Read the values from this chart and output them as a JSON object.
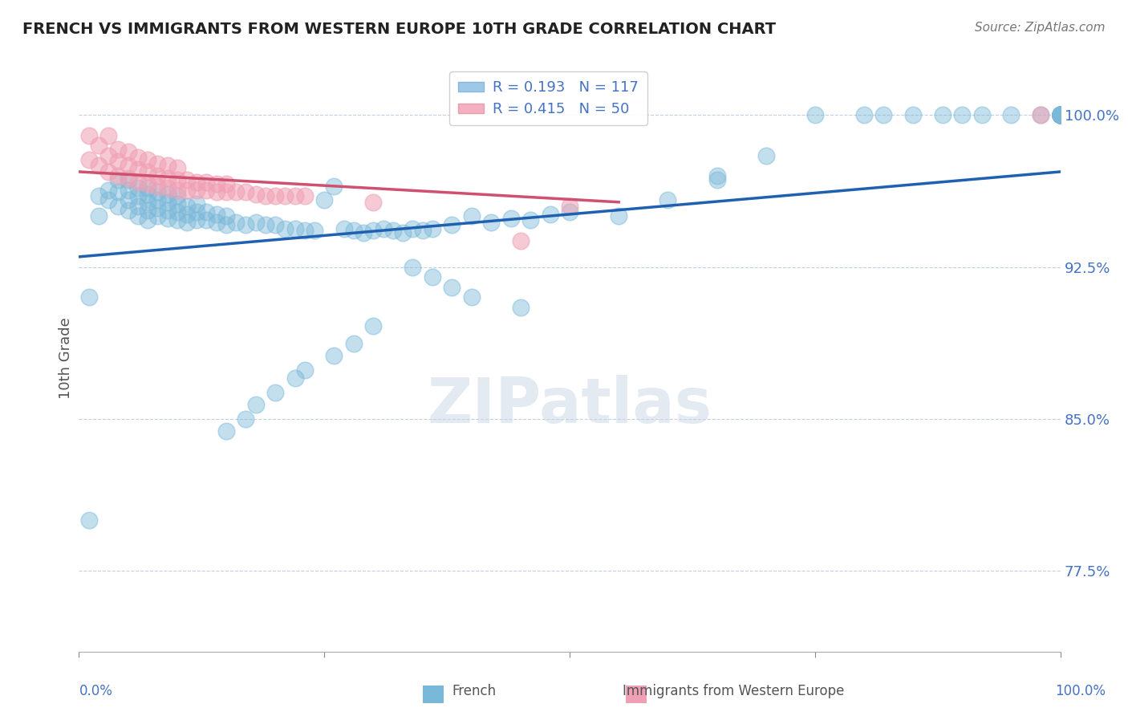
{
  "title": "FRENCH VS IMMIGRANTS FROM WESTERN EUROPE 10TH GRADE CORRELATION CHART",
  "source": "Source: ZipAtlas.com",
  "ylabel": "10th Grade",
  "y_tick_labels": [
    "77.5%",
    "85.0%",
    "92.5%",
    "100.0%"
  ],
  "y_tick_values": [
    0.775,
    0.85,
    0.925,
    1.0
  ],
  "xlim": [
    0.0,
    1.0
  ],
  "ylim": [
    0.735,
    1.025
  ],
  "legend_r1": "R = 0.193",
  "legend_n1": "N = 117",
  "legend_r2": "R = 0.415",
  "legend_n2": "N = 50",
  "blue_color": "#7ab8d9",
  "pink_color": "#f0a0b4",
  "blue_line_color": "#2060b0",
  "pink_line_color": "#d05070",
  "title_color": "#222222",
  "axis_label_color": "#4472c4",
  "blue_line_x0": 0.0,
  "blue_line_y0": 0.93,
  "blue_line_x1": 1.0,
  "blue_line_y1": 0.972,
  "pink_line_x0": 0.0,
  "pink_line_y0": 0.972,
  "pink_line_x1": 0.55,
  "pink_line_y1": 0.957,
  "blue_scatter_x": [
    0.01,
    0.02,
    0.02,
    0.03,
    0.03,
    0.04,
    0.04,
    0.04,
    0.05,
    0.05,
    0.05,
    0.05,
    0.06,
    0.06,
    0.06,
    0.06,
    0.07,
    0.07,
    0.07,
    0.07,
    0.07,
    0.08,
    0.08,
    0.08,
    0.08,
    0.09,
    0.09,
    0.09,
    0.09,
    0.1,
    0.1,
    0.1,
    0.1,
    0.11,
    0.11,
    0.11,
    0.12,
    0.12,
    0.12,
    0.13,
    0.13,
    0.14,
    0.14,
    0.15,
    0.15,
    0.16,
    0.17,
    0.18,
    0.19,
    0.2,
    0.21,
    0.22,
    0.23,
    0.24,
    0.25,
    0.26,
    0.27,
    0.28,
    0.29,
    0.3,
    0.31,
    0.32,
    0.33,
    0.34,
    0.35,
    0.36,
    0.38,
    0.4,
    0.42,
    0.44,
    0.46,
    0.48,
    0.5,
    0.55,
    0.6,
    0.65,
    0.7,
    0.75,
    0.8,
    0.82,
    0.85,
    0.88,
    0.9,
    0.92,
    0.95,
    0.98,
    1.0,
    1.0,
    1.0,
    1.0,
    1.0,
    1.0,
    1.0,
    1.0,
    1.0,
    1.0,
    1.0,
    1.0,
    1.0,
    1.0,
    1.0,
    1.0,
    1.0,
    0.01,
    0.65,
    0.3,
    0.28,
    0.26,
    0.23,
    0.22,
    0.2,
    0.18,
    0.17,
    0.15,
    0.34,
    0.36,
    0.38,
    0.4,
    0.45
  ],
  "blue_scatter_y": [
    0.91,
    0.96,
    0.95,
    0.958,
    0.963,
    0.955,
    0.962,
    0.968,
    0.953,
    0.958,
    0.963,
    0.968,
    0.95,
    0.955,
    0.96,
    0.964,
    0.948,
    0.953,
    0.957,
    0.961,
    0.964,
    0.95,
    0.954,
    0.958,
    0.962,
    0.949,
    0.953,
    0.957,
    0.961,
    0.948,
    0.952,
    0.956,
    0.96,
    0.947,
    0.951,
    0.955,
    0.948,
    0.952,
    0.956,
    0.948,
    0.952,
    0.947,
    0.951,
    0.946,
    0.95,
    0.947,
    0.946,
    0.947,
    0.946,
    0.946,
    0.944,
    0.944,
    0.943,
    0.943,
    0.958,
    0.965,
    0.944,
    0.943,
    0.942,
    0.943,
    0.944,
    0.943,
    0.942,
    0.944,
    0.943,
    0.944,
    0.946,
    0.95,
    0.947,
    0.949,
    0.948,
    0.951,
    0.952,
    0.95,
    0.958,
    0.97,
    0.98,
    1.0,
    1.0,
    1.0,
    1.0,
    1.0,
    1.0,
    1.0,
    1.0,
    1.0,
    1.0,
    1.0,
    1.0,
    1.0,
    1.0,
    1.0,
    1.0,
    1.0,
    1.0,
    1.0,
    1.0,
    1.0,
    1.0,
    1.0,
    1.0,
    1.0,
    1.0,
    0.8,
    0.968,
    0.896,
    0.887,
    0.881,
    0.874,
    0.87,
    0.863,
    0.857,
    0.85,
    0.844,
    0.925,
    0.92,
    0.915,
    0.91,
    0.905
  ],
  "pink_scatter_x": [
    0.01,
    0.01,
    0.02,
    0.02,
    0.03,
    0.03,
    0.03,
    0.04,
    0.04,
    0.04,
    0.05,
    0.05,
    0.05,
    0.06,
    0.06,
    0.06,
    0.07,
    0.07,
    0.07,
    0.08,
    0.08,
    0.08,
    0.09,
    0.09,
    0.09,
    0.1,
    0.1,
    0.1,
    0.11,
    0.11,
    0.12,
    0.12,
    0.13,
    0.13,
    0.14,
    0.14,
    0.15,
    0.15,
    0.16,
    0.17,
    0.18,
    0.19,
    0.2,
    0.21,
    0.22,
    0.23,
    0.3,
    0.45,
    0.5,
    0.98
  ],
  "pink_scatter_y": [
    0.978,
    0.99,
    0.975,
    0.985,
    0.972,
    0.98,
    0.99,
    0.97,
    0.977,
    0.983,
    0.969,
    0.975,
    0.982,
    0.967,
    0.973,
    0.979,
    0.966,
    0.972,
    0.978,
    0.965,
    0.97,
    0.976,
    0.964,
    0.969,
    0.975,
    0.963,
    0.968,
    0.974,
    0.963,
    0.968,
    0.963,
    0.967,
    0.963,
    0.967,
    0.962,
    0.966,
    0.962,
    0.966,
    0.962,
    0.962,
    0.961,
    0.96,
    0.96,
    0.96,
    0.96,
    0.96,
    0.957,
    0.938,
    0.955,
    1.0
  ]
}
